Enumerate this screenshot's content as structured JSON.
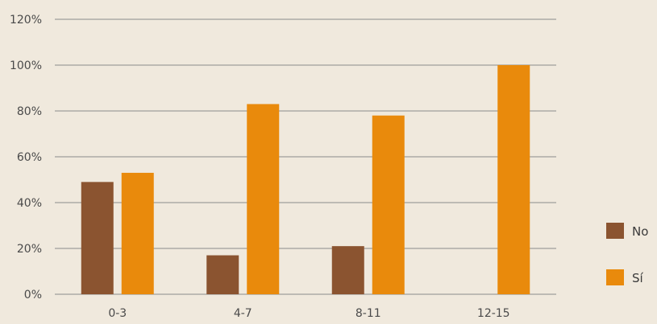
{
  "chart_data": {
    "type": "bar",
    "title": "",
    "xlabel": "",
    "ylabel": "",
    "categories": [
      "0-3",
      "4-7",
      "8-11",
      "12-15"
    ],
    "series": [
      {
        "name": "No",
        "values": [
          49,
          17,
          21,
          0
        ],
        "color": "#8b5430"
      },
      {
        "name": "Sí",
        "values": [
          53,
          83,
          78,
          100
        ],
        "color": "#e98a0c"
      }
    ],
    "ylim": [
      0,
      120
    ],
    "y_ticks": [
      0,
      20,
      40,
      60,
      80,
      100,
      120
    ],
    "y_tick_labels": [
      "0%",
      "20%",
      "40%",
      "60%",
      "80%",
      "100%",
      "120%"
    ],
    "grid": true,
    "legend_position": "right"
  },
  "colors": {
    "background": "#f0e9dd",
    "grid": "#8a8a8a",
    "text": "#4a4a4a"
  }
}
